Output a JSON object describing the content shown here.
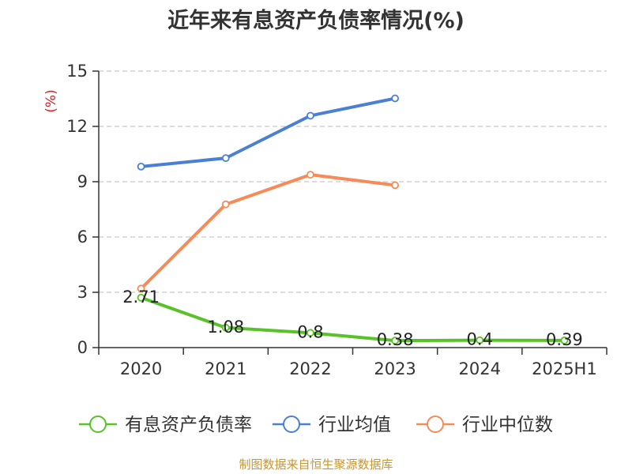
{
  "chart_data": {
    "type": "line",
    "title": "近年来有息资产负债率情况(%)",
    "ylabel": "(%)",
    "categories": [
      "2020",
      "2021",
      "2022",
      "2023",
      "2024",
      "2025H1"
    ],
    "ylim": [
      0,
      15
    ],
    "yticks": [
      "0",
      "3",
      "6",
      "9",
      "12",
      "15"
    ],
    "grid": true,
    "legend_position": "bottom",
    "series": [
      {
        "name": "有息资产负债率",
        "color": "#5ac229",
        "values": [
          2.71,
          1.08,
          0.8,
          0.38,
          0.4,
          0.39
        ],
        "labels": [
          "2.71",
          "1.08",
          "0.8",
          "0.38",
          "0.4",
          "0.39"
        ]
      },
      {
        "name": "行业均值",
        "color": "#4a7fd6",
        "values": [
          9.82,
          10.28,
          12.58,
          13.52,
          null,
          null
        ]
      },
      {
        "name": "行业中位数",
        "color": "#f78b57",
        "values": [
          3.2,
          7.77,
          9.38,
          8.81,
          null,
          null
        ]
      }
    ]
  },
  "source": "制图数据来自恒生聚源数据库"
}
